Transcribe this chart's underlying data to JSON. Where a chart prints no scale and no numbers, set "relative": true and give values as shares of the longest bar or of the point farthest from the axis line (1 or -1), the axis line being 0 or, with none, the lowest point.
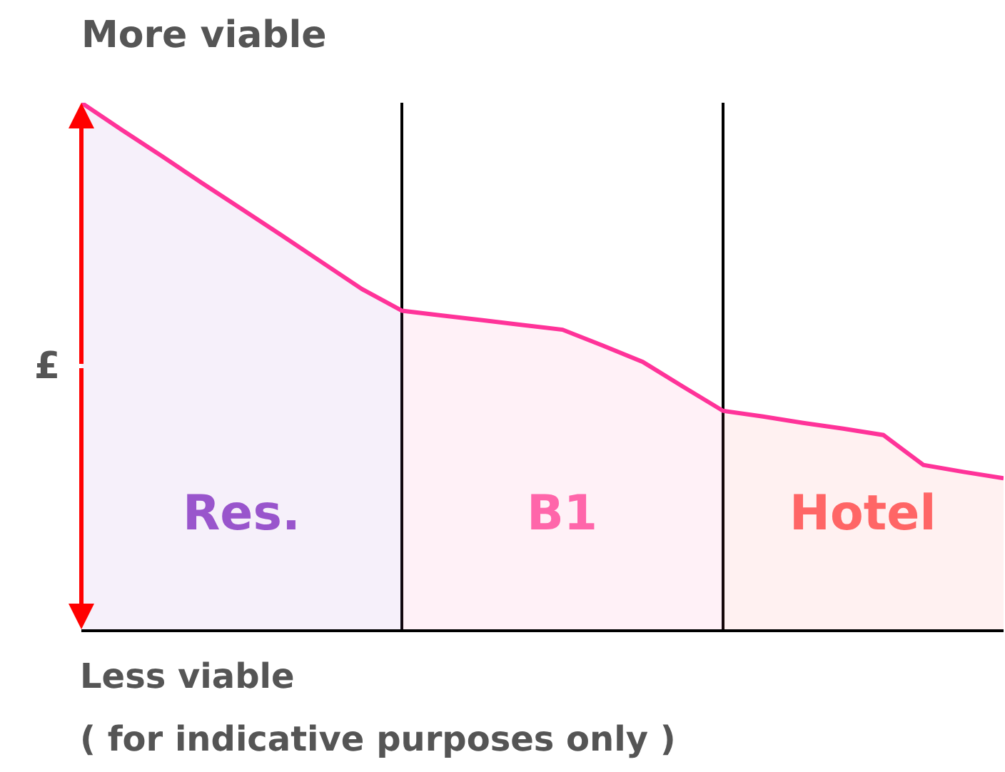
{
  "chart_data": {
    "type": "area",
    "title": "More viable",
    "ylabel": "£",
    "relative": true,
    "grid": "x",
    "marker": "none",
    "line_style": "solid",
    "categories": [
      null,
      null,
      null,
      null,
      null,
      null,
      null,
      null,
      null,
      null,
      null,
      null,
      null,
      null,
      null,
      null,
      null,
      null,
      null,
      null,
      null,
      null,
      null,
      null
    ],
    "series": [
      {
        "name": "Res.",
        "color": "#9955cc",
        "values": [
          1,
          0.949,
          0.899,
          0.848,
          0.798,
          0.748,
          0.697,
          0.646,
          0.605,
          null,
          null,
          null,
          null,
          null,
          null,
          null,
          null,
          null,
          null,
          null,
          null,
          null,
          null,
          null
        ]
      },
      {
        "name": "B1",
        "color": "#ff66aa",
        "values": [
          null,
          null,
          null,
          null,
          null,
          null,
          null,
          null,
          0.605,
          0.596,
          0.587,
          0.578,
          0.569,
          0.539,
          0.508,
          0.461,
          0.415,
          null,
          null,
          null,
          null,
          null,
          null,
          null
        ]
      },
      {
        "name": "Hotel",
        "color": "#ff6666",
        "values": [
          null,
          null,
          null,
          null,
          null,
          null,
          null,
          null,
          null,
          null,
          null,
          null,
          null,
          null,
          null,
          null,
          0.415,
          0.404,
          0.392,
          0.381,
          0.369,
          0.312,
          0.299,
          0.287
        ]
      },
      {
        "type": "line",
        "color": "#ff3399",
        "values": [
          1,
          0.949,
          0.899,
          0.848,
          0.798,
          0.748,
          0.697,
          0.646,
          0.605,
          0.596,
          0.587,
          0.578,
          0.569,
          0.539,
          0.508,
          0.461,
          0.415,
          0.404,
          0.392,
          0.381,
          0.369,
          0.312,
          0.299,
          0.287
        ]
      }
    ],
    "annotations": [
      "Less viable",
      "( for indicative purposes only )"
    ]
  }
}
